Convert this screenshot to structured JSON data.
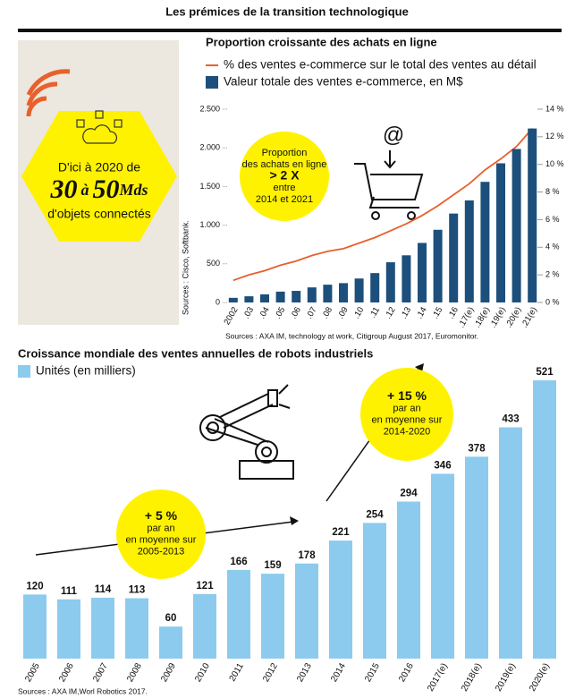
{
  "title": "Les prémices de la transition technologique",
  "infobox": {
    "lines": [
      "D'ici à 2020 de",
      "d'objets connectés"
    ],
    "big": [
      "30",
      "à",
      "50",
      "Mds"
    ],
    "source": "Sources : Cisco, Softbank."
  },
  "chart_data": [
    {
      "type": "combo",
      "title": "Proportion croissante des achats en ligne",
      "categories": [
        "2002",
        ".03",
        ".04",
        ".05",
        ".06",
        ".07",
        ".08",
        ".09",
        ".10",
        ".11",
        ".12",
        ".13",
        ".14",
        ".15",
        ".16",
        ".17(e)",
        ".18(e)",
        ".19(e)",
        ".20(e)",
        ".21(e)"
      ],
      "series": [
        {
          "name": "% des ventes e-commerce sur le total des ventes au détail",
          "color": "#e8602c",
          "axis": "y2",
          "values": [
            1.6,
            2.0,
            2.3,
            2.7,
            3.0,
            3.4,
            3.7,
            3.9,
            4.3,
            4.7,
            5.2,
            5.7,
            6.3,
            7.0,
            7.8,
            8.6,
            9.6,
            10.4,
            11.3,
            12.6
          ]
        },
        {
          "name": "Valeur totale des ventes e-commerce, en M$",
          "color": "#1d4f7c",
          "values": [
            60,
            80,
            105,
            140,
            150,
            195,
            230,
            250,
            310,
            380,
            520,
            610,
            770,
            940,
            1150,
            1320,
            1560,
            1800,
            1985,
            2250
          ]
        }
      ],
      "ylim": [
        0,
        2500
      ],
      "yticks": [
        0,
        500,
        {
          "value": 1000,
          "label": "1.000"
        },
        {
          "value": 1500,
          "label": "1.500"
        },
        {
          "value": 2000,
          "label": "2.000"
        },
        {
          "value": 2500,
          "label": "2.500"
        }
      ],
      "y2lim": [
        0,
        14
      ],
      "y2ticks": [
        {
          "value": 0,
          "label": "0 %"
        },
        {
          "value": 2,
          "label": "2 %"
        },
        {
          "value": 4,
          "label": "4 %"
        },
        {
          "value": 6,
          "label": "6 %"
        },
        {
          "value": 8,
          "label": "8 %"
        },
        {
          "value": 10,
          "label": "10 %"
        },
        {
          "value": 12,
          "label": "12 %"
        },
        {
          "value": 14,
          "label": "14 %"
        }
      ],
      "annotations": [
        [
          "Proportion",
          "des achats en ligne",
          "> 2 X",
          "entre",
          "2014 et 2021"
        ]
      ],
      "source": "Sources : AXA IM, technology at work, Citigroup August 2017, Euromonitor."
    },
    {
      "type": "bar",
      "title": "Croissance mondiale des ventes annuelles de robots industriels",
      "categories": [
        "2005",
        "2006",
        "2007",
        "2008",
        "2009",
        "2010",
        "2011",
        "2012",
        "2013",
        "2014",
        "2015",
        "2016",
        "2017(e)",
        "2018(e)",
        "2019(e)",
        "2020(e)"
      ],
      "series": [
        {
          "name": "Unités (en milliers)",
          "color": "#8ccbee",
          "values": [
            120,
            111,
            114,
            113,
            60,
            121,
            166,
            159,
            178,
            221,
            254,
            294,
            346,
            378,
            433,
            521
          ]
        }
      ],
      "annotations": [
        [
          "+ 5 %",
          "par an",
          "en moyenne sur",
          "2005-2013"
        ],
        [
          "+ 15 %",
          "par an",
          "en moyenne sur",
          "2014-2020"
        ]
      ],
      "source": "Sources : AXA IM,Worl Robotics 2017."
    }
  ]
}
